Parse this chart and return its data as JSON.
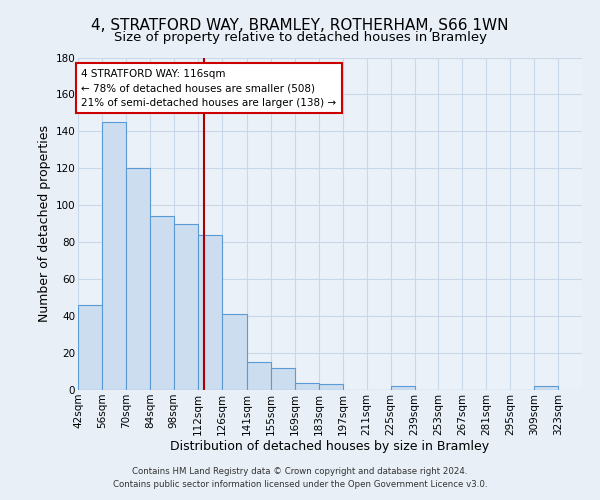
{
  "title": "4, STRATFORD WAY, BRAMLEY, ROTHERHAM, S66 1WN",
  "subtitle": "Size of property relative to detached houses in Bramley",
  "xlabel": "Distribution of detached houses by size in Bramley",
  "ylabel": "Number of detached properties",
  "bin_edges": [
    42,
    56,
    70,
    84,
    98,
    112,
    126,
    141,
    155,
    169,
    183,
    197,
    211,
    225,
    239,
    253,
    267,
    281,
    295,
    309,
    323
  ],
  "bar_heights": [
    46,
    145,
    120,
    94,
    90,
    84,
    41,
    15,
    12,
    4,
    3,
    0,
    0,
    2,
    0,
    0,
    0,
    0,
    0,
    2
  ],
  "bar_color": "#ccddf0",
  "bar_edge_color": "#5b9bd5",
  "tick_labels": [
    "42sqm",
    "56sqm",
    "70sqm",
    "84sqm",
    "98sqm",
    "112sqm",
    "126sqm",
    "141sqm",
    "155sqm",
    "169sqm",
    "183sqm",
    "197sqm",
    "211sqm",
    "225sqm",
    "239sqm",
    "253sqm",
    "267sqm",
    "281sqm",
    "295sqm",
    "309sqm",
    "323sqm"
  ],
  "ylim": [
    0,
    180
  ],
  "yticks": [
    0,
    20,
    40,
    60,
    80,
    100,
    120,
    140,
    160,
    180
  ],
  "vline_x": 116,
  "vline_color": "#aa0000",
  "annotation_title": "4 STRATFORD WAY: 116sqm",
  "annotation_line1": "← 78% of detached houses are smaller (508)",
  "annotation_line2": "21% of semi-detached houses are larger (138) →",
  "footer1": "Contains HM Land Registry data © Crown copyright and database right 2024.",
  "footer2": "Contains public sector information licensed under the Open Government Licence v3.0.",
  "bg_color": "#e8eff7",
  "plot_bg_color": "#eaf1f8",
  "grid_color": "#c8d8e8",
  "title_fontsize": 11,
  "subtitle_fontsize": 9.5,
  "axis_label_fontsize": 9,
  "tick_fontsize": 7.5
}
